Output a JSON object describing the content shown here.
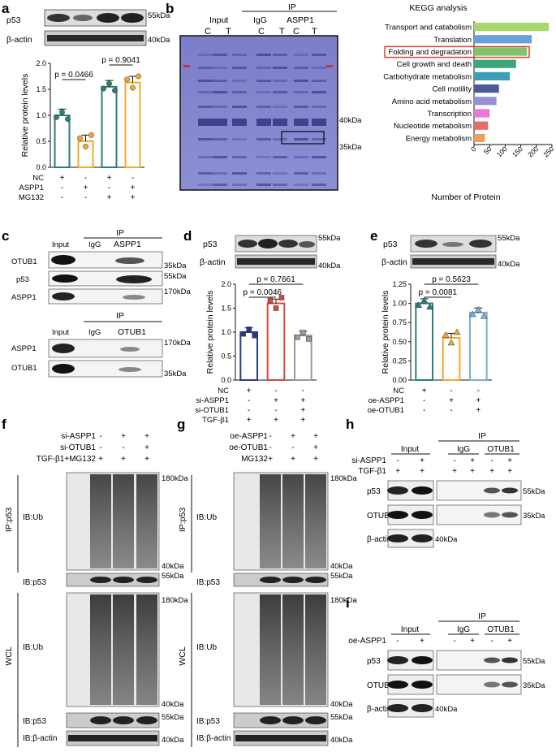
{
  "panels": {
    "a": {
      "letter": "a",
      "p53": "p53",
      "actin": "β-actin",
      "kda55": "55kDa",
      "kda40": "40kDa",
      "ylabel": "Relative protein levels",
      "p1": "p = 0.0466",
      "p2": "p = 0.9041",
      "rows": [
        {
          "name": "NC",
          "v": [
            "+",
            "-",
            "+",
            "-"
          ]
        },
        {
          "name": "ASPP1",
          "v": [
            "-",
            "+",
            "-",
            "+"
          ]
        },
        {
          "name": "MG132",
          "v": [
            "-",
            "-",
            "+",
            "+"
          ]
        }
      ],
      "yticks": [
        "0.0",
        "0.5",
        "1.0",
        "1.5",
        "2.0"
      ]
    },
    "b": {
      "letter": "b",
      "input": "Input",
      "ip": "IP",
      "igg": "IgG",
      "aspp1": "ASPP1",
      "lanes": [
        "C",
        "T",
        "C",
        "T",
        "C",
        "T"
      ],
      "kda40": "40kDa",
      "kda35": "35kDa"
    },
    "kegg": {
      "title": "KEGG analysis",
      "xlabel": "Number of Protein",
      "xticks": [
        "0",
        "50",
        "100",
        "150",
        "200",
        "250"
      ],
      "highlight": "Folding and degradation"
    },
    "c": {
      "letter": "c",
      "ip": "IP",
      "input": "Input",
      "igg": "IgG",
      "aspp1": "ASPP1",
      "otub1": "OTUB1",
      "p53": "p53",
      "k35": "35kDa",
      "k55": "55kDa",
      "k170": "170kDa"
    },
    "d": {
      "letter": "d",
      "p53": "p53",
      "actin": "β-actin",
      "kda55": "55kDa",
      "kda40": "40kDa",
      "ylabel": "Relative protein levels",
      "p1": "p = 0.7661",
      "p2": "p = 0.0046",
      "rows": [
        {
          "name": "NC",
          "v": [
            "+",
            "-",
            "-"
          ]
        },
        {
          "name": "si-ASPP1",
          "v": [
            "-",
            "+",
            "+"
          ]
        },
        {
          "name": "si-OTUB1",
          "v": [
            "-",
            "-",
            "+"
          ]
        },
        {
          "name": "TGF-β1",
          "v": [
            "+",
            "+",
            "+"
          ]
        }
      ],
      "yticks": [
        "0.0",
        "0.5",
        "1.0",
        "1.5",
        "2.0"
      ]
    },
    "e": {
      "letter": "e",
      "p53": "p53",
      "actin": "β-actin",
      "kda55": "55kDa",
      "kda40": "40kDa",
      "ylabel": "Relative protein levels",
      "p1": "p = 0.5623",
      "p2": "p = 0.0081",
      "rows": [
        {
          "name": "NC",
          "v": [
            "+",
            "-",
            "-"
          ]
        },
        {
          "name": "oe-ASPP1",
          "v": [
            "-",
            "+",
            "+"
          ]
        },
        {
          "name": "oe-OTUB1",
          "v": [
            "-",
            "-",
            "+"
          ]
        }
      ],
      "yticks": [
        "0.00",
        "0.25",
        "0.50",
        "0.75",
        "1.00",
        "1.25"
      ]
    },
    "f": {
      "letter": "f",
      "rows": [
        {
          "name": "si-ASPP1",
          "v": [
            "-",
            "+",
            "+"
          ]
        },
        {
          "name": "si-OTUB1",
          "v": [
            "-",
            "-",
            "+"
          ]
        },
        {
          "name": "TGF-β1+MG132",
          "v": [
            "+",
            "+",
            "+"
          ]
        }
      ],
      "ip": "IP:p53",
      "wcl": "WCL",
      "ibub": "IB:Ub",
      "ibp53": "IB:p53",
      "ibactin": "IB:β-actin",
      "k180": "180kDa",
      "k40": "40kDa",
      "k55": "55kDa"
    },
    "g": {
      "letter": "g",
      "rows": [
        {
          "name": "oe-ASPP1",
          "v": [
            "-",
            "+",
            "+"
          ]
        },
        {
          "name": "oe-OTUB1",
          "v": [
            "-",
            "-",
            "+"
          ]
        },
        {
          "name": "MG132",
          "v": [
            "+",
            "+",
            "+"
          ]
        }
      ],
      "ip": "IP:p53",
      "wcl": "WCL",
      "ibub": "IB:Ub",
      "ibp53": "IB:p53",
      "ibactin": "IB:β-actin",
      "k180": "180kDa",
      "k40": "40kDa",
      "k55": "55kDa"
    },
    "h": {
      "letter": "h",
      "ip": "IP",
      "input": "Input",
      "igg": "IgG",
      "otub1": "OTUB1",
      "p53": "p53",
      "actin": "β-actin",
      "rows": [
        {
          "name": "si-ASPP1",
          "v": [
            "-",
            "+",
            "-",
            "+",
            "-",
            "+"
          ]
        },
        {
          "name": "TGF-β1",
          "v": [
            "+",
            "+",
            "+",
            "+",
            "+",
            "+"
          ]
        }
      ],
      "k55": "55kDa",
      "k35": "35kDa",
      "k40": "40kDa"
    },
    "i": {
      "letter": "i",
      "ip": "IP",
      "input": "Input",
      "igg": "IgG",
      "otub1": "OTUB1",
      "p53": "p53",
      "actin": "β-actin",
      "rows": [
        {
          "name": "oe-ASPP1",
          "v": [
            "-",
            "+",
            "-",
            "+",
            "-",
            "+"
          ]
        }
      ],
      "k55": "55kDa",
      "k35": "35kDa",
      "k40": "40kDa"
    }
  },
  "chart_data": [
    {
      "type": "bar",
      "panel": "a",
      "categories": [
        "NC",
        "ASPP1",
        "NC+MG132",
        "ASPP1+MG132"
      ],
      "values": [
        1.0,
        0.5,
        1.55,
        1.63
      ],
      "colors": [
        "#2e7d7a",
        "#f0a830",
        "#2e7d7a",
        "#f0a830"
      ],
      "ylim": [
        0,
        2.0
      ],
      "ylabel": "Relative protein levels"
    },
    {
      "type": "bar",
      "panel": "kegg",
      "title": "KEGG analysis",
      "xlabel": "Number of Protein",
      "categories": [
        "Transport and catabolism",
        "Translation",
        "Folding and degradation",
        "Cell growth and death",
        "Carbohydrate metabolism",
        "Cell motility",
        "Amino acid metabolism",
        "Transcription",
        "Nucleotide metabolism",
        "Energy metabolism"
      ],
      "values": [
        240,
        185,
        170,
        135,
        115,
        80,
        72,
        50,
        45,
        35
      ],
      "colors": [
        "#a6d96a",
        "#6a9fd8",
        "#7cc36a",
        "#3da57a",
        "#3a9fb5",
        "#4a5a9a",
        "#9b8fd4",
        "#e87ad6",
        "#e96a6a",
        "#e8a060"
      ],
      "xlim": [
        0,
        250
      ]
    },
    {
      "type": "bar",
      "panel": "d",
      "categories": [
        "NC",
        "si-ASPP1",
        "si-ASPP1+si-OTUB1"
      ],
      "values": [
        1.0,
        1.6,
        0.93
      ],
      "colors": [
        "#2a3a8a",
        "#d24a3a",
        "#9a9a9a"
      ],
      "ylim": [
        0,
        2.0
      ],
      "ylabel": "Relative protein levels"
    },
    {
      "type": "bar",
      "panel": "e",
      "categories": [
        "NC",
        "oe-ASPP1",
        "oe-ASPP1+oe-OTUB1"
      ],
      "values": [
        1.0,
        0.55,
        0.88
      ],
      "colors": [
        "#2e7d7a",
        "#f0a830",
        "#7ab0d8"
      ],
      "ylim": [
        0,
        1.25
      ],
      "ylabel": "Relative protein levels"
    }
  ]
}
